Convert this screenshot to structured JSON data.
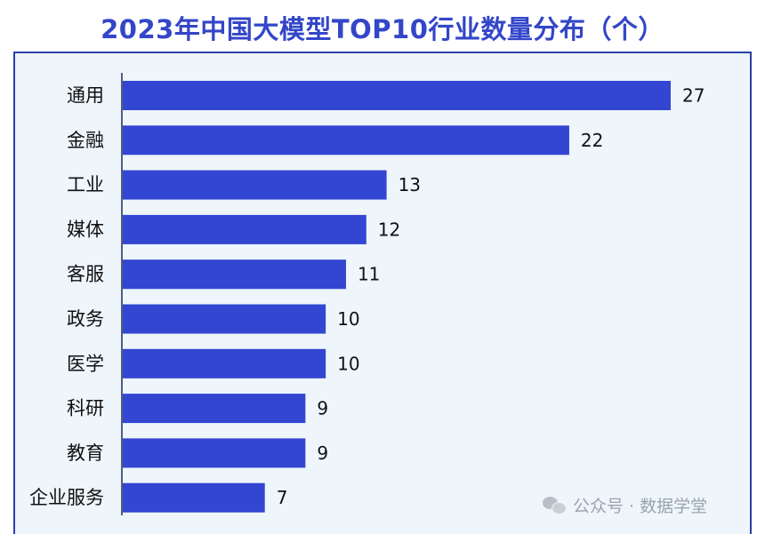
{
  "chart_data": {
    "type": "bar",
    "orientation": "horizontal",
    "title": "2023年中国大模型TOP10行业数量分布（个）",
    "categories": [
      "通用",
      "金融",
      "工业",
      "媒体",
      "客服",
      "政务",
      "医学",
      "科研",
      "教育",
      "企业服务"
    ],
    "values": [
      27,
      22,
      13,
      12,
      11,
      10,
      10,
      9,
      9,
      7
    ],
    "bar_color": "#3246d1",
    "xlim": [
      0,
      27
    ],
    "grid": false,
    "legend": "none"
  },
  "watermark": {
    "icon": "wechat-icon",
    "text": "公众号 · 数据学堂"
  },
  "colors": {
    "title": "#3346c8",
    "panel_background": "#eef5fb",
    "panel_border": "#2a3fa8"
  }
}
